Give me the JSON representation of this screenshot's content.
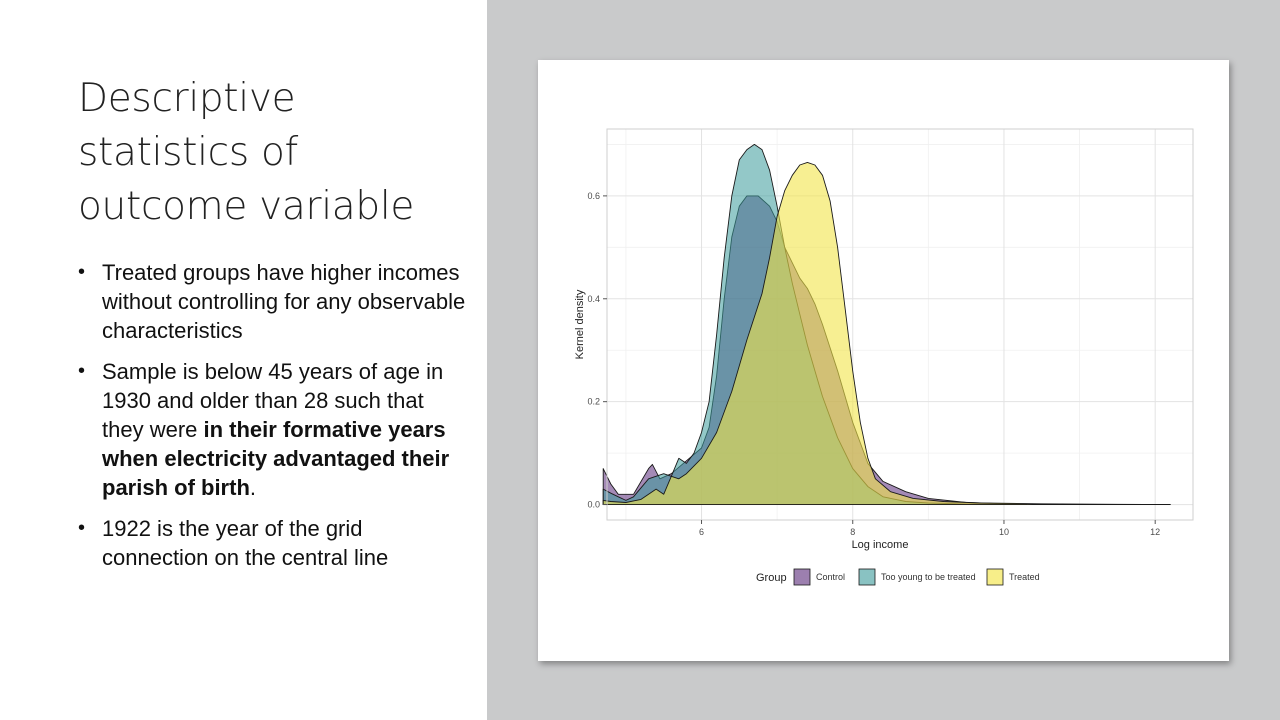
{
  "slide": {
    "title": "Descriptive statistics of outcome variable",
    "bullets": [
      {
        "parts": [
          {
            "text": "Treated groups have higher incomes without controlling for any observable characteristics",
            "bold": false
          }
        ]
      },
      {
        "parts": [
          {
            "text": "Sample is below 45 years of age in 1930 and older than 28 such that they were ",
            "bold": false
          },
          {
            "text": "in their formative years when electricity advantaged their parish of birth",
            "bold": true
          },
          {
            "text": ".",
            "bold": false
          }
        ]
      },
      {
        "parts": [
          {
            "text": "1922 is the year of the grid connection on the central line",
            "bold": false
          }
        ]
      }
    ]
  },
  "chart_data": {
    "type": "area",
    "xlabel": "Log income",
    "ylabel": "Kernel density",
    "xlim": [
      4.75,
      12.5
    ],
    "ylim": [
      -0.03,
      0.73
    ],
    "xticks": [
      6,
      8,
      10,
      12
    ],
    "yticks": [
      0.0,
      0.2,
      0.4,
      0.6
    ],
    "ytick_labels": [
      "0.0",
      "0.2",
      "0.4",
      "0.6"
    ],
    "grid": true,
    "legend": {
      "title": "Group",
      "placement": "bottom"
    },
    "series": [
      {
        "name": "Control",
        "color": "#5a2a7a",
        "opacity": 0.55,
        "points": [
          [
            4.7,
            0.07
          ],
          [
            4.8,
            0.04
          ],
          [
            4.9,
            0.02
          ],
          [
            5.1,
            0.02
          ],
          [
            5.3,
            0.07
          ],
          [
            5.35,
            0.078
          ],
          [
            5.45,
            0.05
          ],
          [
            5.6,
            0.06
          ],
          [
            5.8,
            0.085
          ],
          [
            6.0,
            0.11
          ],
          [
            6.1,
            0.15
          ],
          [
            6.2,
            0.25
          ],
          [
            6.3,
            0.4
          ],
          [
            6.4,
            0.52
          ],
          [
            6.5,
            0.58
          ],
          [
            6.6,
            0.6
          ],
          [
            6.75,
            0.6
          ],
          [
            6.9,
            0.58
          ],
          [
            7.0,
            0.55
          ],
          [
            7.1,
            0.5
          ],
          [
            7.2,
            0.47
          ],
          [
            7.3,
            0.44
          ],
          [
            7.4,
            0.42
          ],
          [
            7.5,
            0.39
          ],
          [
            7.6,
            0.35
          ],
          [
            7.8,
            0.26
          ],
          [
            8.0,
            0.16
          ],
          [
            8.2,
            0.08
          ],
          [
            8.4,
            0.045
          ],
          [
            8.7,
            0.025
          ],
          [
            9.0,
            0.012
          ],
          [
            9.5,
            0.004
          ],
          [
            10.0,
            0.0015
          ],
          [
            10.3,
            0.0005
          ]
        ]
      },
      {
        "name": "Too young to be treated",
        "color": "#3a9a9a",
        "opacity": 0.55,
        "points": [
          [
            4.7,
            0.03
          ],
          [
            4.8,
            0.022
          ],
          [
            4.9,
            0.015
          ],
          [
            5.0,
            0.008
          ],
          [
            5.1,
            0.015
          ],
          [
            5.3,
            0.05
          ],
          [
            5.5,
            0.06
          ],
          [
            5.6,
            0.055
          ],
          [
            5.7,
            0.09
          ],
          [
            5.8,
            0.08
          ],
          [
            5.9,
            0.1
          ],
          [
            6.0,
            0.14
          ],
          [
            6.1,
            0.2
          ],
          [
            6.2,
            0.33
          ],
          [
            6.3,
            0.48
          ],
          [
            6.4,
            0.6
          ],
          [
            6.5,
            0.67
          ],
          [
            6.6,
            0.69
          ],
          [
            6.7,
            0.7
          ],
          [
            6.8,
            0.69
          ],
          [
            6.9,
            0.65
          ],
          [
            7.0,
            0.58
          ],
          [
            7.1,
            0.5
          ],
          [
            7.2,
            0.43
          ],
          [
            7.3,
            0.37
          ],
          [
            7.4,
            0.31
          ],
          [
            7.5,
            0.26
          ],
          [
            7.6,
            0.21
          ],
          [
            7.8,
            0.13
          ],
          [
            8.0,
            0.07
          ],
          [
            8.2,
            0.035
          ],
          [
            8.4,
            0.015
          ],
          [
            8.7,
            0.006
          ],
          [
            9.0,
            0.003
          ],
          [
            9.5,
            0.001
          ],
          [
            10.0,
            0.0003
          ]
        ]
      },
      {
        "name": "Treated",
        "color": "#f2e54a",
        "opacity": 0.6,
        "points": [
          [
            4.7,
            0.008
          ],
          [
            4.8,
            0.006
          ],
          [
            5.0,
            0.004
          ],
          [
            5.2,
            0.01
          ],
          [
            5.4,
            0.03
          ],
          [
            5.5,
            0.02
          ],
          [
            5.6,
            0.055
          ],
          [
            5.7,
            0.05
          ],
          [
            5.8,
            0.06
          ],
          [
            6.0,
            0.09
          ],
          [
            6.2,
            0.14
          ],
          [
            6.4,
            0.22
          ],
          [
            6.6,
            0.32
          ],
          [
            6.8,
            0.41
          ],
          [
            6.9,
            0.48
          ],
          [
            7.0,
            0.56
          ],
          [
            7.1,
            0.61
          ],
          [
            7.2,
            0.64
          ],
          [
            7.3,
            0.66
          ],
          [
            7.4,
            0.665
          ],
          [
            7.5,
            0.66
          ],
          [
            7.6,
            0.64
          ],
          [
            7.7,
            0.59
          ],
          [
            7.8,
            0.5
          ],
          [
            7.9,
            0.38
          ],
          [
            8.0,
            0.26
          ],
          [
            8.1,
            0.16
          ],
          [
            8.2,
            0.09
          ],
          [
            8.3,
            0.05
          ],
          [
            8.5,
            0.025
          ],
          [
            8.8,
            0.012
          ],
          [
            9.2,
            0.006
          ],
          [
            9.7,
            0.003
          ],
          [
            10.5,
            0.0015
          ],
          [
            11.5,
            0.0005
          ],
          [
            12.2,
            0.0002
          ]
        ]
      }
    ]
  }
}
